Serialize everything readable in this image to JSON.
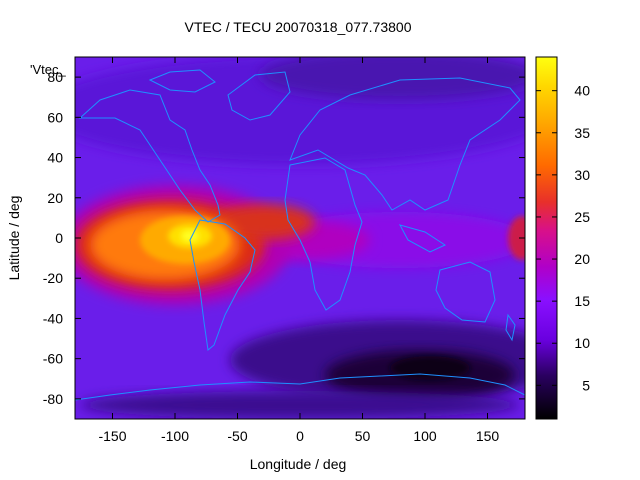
{
  "chart_data": {
    "type": "heatmap",
    "title": "VTEC / TECU 20070318_077.73800",
    "xlabel": "Longitude / deg",
    "ylabel": "Latitude / deg",
    "key_label": "'Vtec_",
    "xlim": [
      -180,
      180
    ],
    "ylim": [
      -90,
      90
    ],
    "xticks": [
      -150,
      -100,
      -50,
      0,
      50,
      100,
      150
    ],
    "yticks": [
      -80,
      -60,
      -40,
      -20,
      0,
      20,
      40,
      60,
      80
    ],
    "colorbar": {
      "range": [
        1,
        44
      ],
      "ticks": [
        5,
        10,
        15,
        20,
        25,
        30,
        35,
        40
      ],
      "palette": [
        "#000000",
        "#3d0090",
        "#7a00ff",
        "#b000c8",
        "#e21a1a",
        "#ff7a00",
        "#ffd000",
        "#ffff00"
      ]
    },
    "grid": false,
    "features": [
      {
        "name": "equatorial-anomaly-peak",
        "lon": -90,
        "lat": 0,
        "value": 43
      },
      {
        "name": "southern-low",
        "lon": 110,
        "lat": -65,
        "value": 2
      }
    ],
    "coastline_color": "#1e90ff"
  }
}
